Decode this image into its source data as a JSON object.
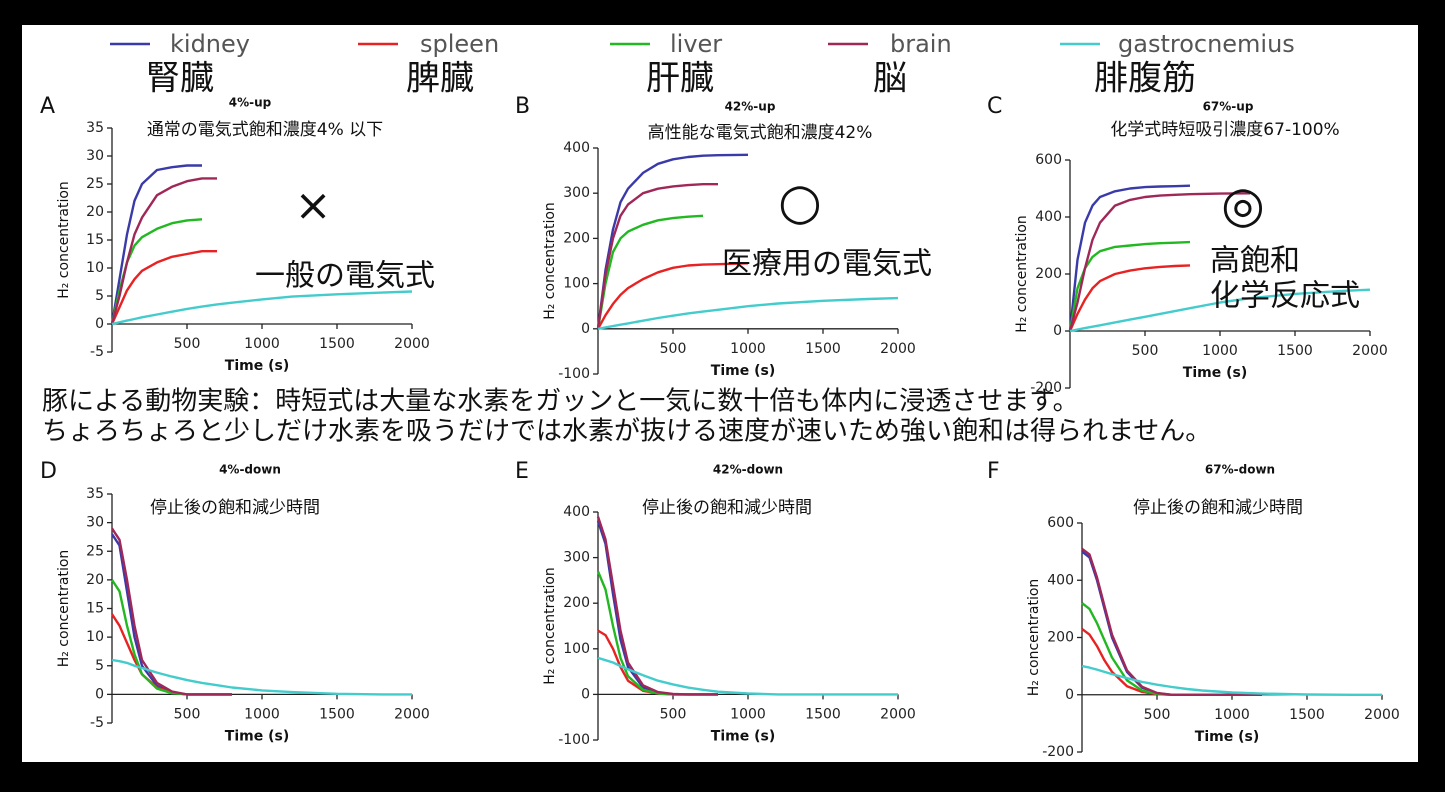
{
  "legend_ja": [
    "腎臓",
    "脾臓",
    "肝臓",
    "脳",
    "腓腹筋"
  ],
  "caption": [
    "豚による動物実験：時短式は大量な水素をガッンと一気に数十倍も体内に浸透させます。",
    "ちょろちょろと少しだけ水素を吸うだけでは水素が抜ける速度が速いため強い飽和は得られません。"
  ],
  "chart_data": [
    {
      "type": "line",
      "panel": "A",
      "title": "4%-up",
      "xlabel": "Time (s)",
      "ylabel": "H₂ concentration",
      "annotations": [
        "通常の電気式飽和濃度4% 以下",
        "×",
        "一般の電気式"
      ],
      "xlim": [
        0,
        2000
      ],
      "xticks": [
        500,
        1000,
        1500,
        2000
      ],
      "ylim": [
        -5,
        35
      ],
      "yticks": [
        -5,
        0,
        5,
        10,
        15,
        20,
        25,
        30,
        35
      ],
      "x": [
        0,
        50,
        100,
        150,
        200,
        300,
        400,
        500,
        600,
        700,
        800,
        1000,
        1200,
        1500,
        1800,
        2000
      ],
      "series": [
        {
          "name": "kidney",
          "color": "#3a3aa8",
          "values": [
            0,
            8,
            16,
            22,
            25,
            27.5,
            28,
            28.3,
            28.3,
            null,
            null,
            null,
            null,
            null,
            null,
            null
          ]
        },
        {
          "name": "spleen",
          "color": "#e82222",
          "values": [
            0,
            3,
            6,
            8,
            9.5,
            11,
            12,
            12.5,
            13,
            13,
            null,
            null,
            null,
            null,
            null,
            null
          ]
        },
        {
          "name": "liver",
          "color": "#22b822",
          "values": [
            0,
            6,
            11,
            14,
            15.5,
            17,
            18,
            18.5,
            18.7,
            null,
            null,
            null,
            null,
            null,
            null,
            null
          ]
        },
        {
          "name": "brain",
          "color": "#a02858",
          "values": [
            0,
            5,
            11,
            16,
            19,
            23,
            24.5,
            25.5,
            26,
            26,
            null,
            null,
            null,
            null,
            null,
            null
          ]
        },
        {
          "name": "gastrocnemius",
          "color": "#44cccc",
          "values": [
            0,
            0.3,
            0.6,
            0.9,
            1.2,
            1.7,
            2.2,
            2.7,
            3.1,
            3.5,
            3.8,
            4.4,
            4.9,
            5.3,
            5.6,
            5.8
          ]
        }
      ]
    },
    {
      "type": "line",
      "panel": "B",
      "title": "42%-up",
      "xlabel": "Time (s)",
      "ylabel": "H₂ concentration",
      "annotations": [
        "高性能な電気式飽和濃度42%",
        "○",
        "医療用の電気式"
      ],
      "xlim": [
        0,
        2000
      ],
      "xticks": [
        500,
        1000,
        1500,
        2000
      ],
      "ylim": [
        -100,
        400
      ],
      "yticks": [
        -100,
        0,
        100,
        200,
        300,
        400
      ],
      "x": [
        0,
        50,
        100,
        150,
        200,
        300,
        400,
        500,
        600,
        700,
        800,
        1000,
        1200,
        1500,
        1800,
        2000
      ],
      "series": [
        {
          "name": "kidney",
          "color": "#3a3aa8",
          "values": [
            0,
            130,
            220,
            280,
            310,
            345,
            365,
            375,
            380,
            383,
            384,
            385,
            null,
            null,
            null,
            null
          ]
        },
        {
          "name": "spleen",
          "color": "#e82222",
          "values": [
            0,
            30,
            55,
            75,
            90,
            110,
            125,
            135,
            140,
            142,
            143,
            145,
            null,
            null,
            null,
            null
          ]
        },
        {
          "name": "liver",
          "color": "#22b822",
          "values": [
            0,
            100,
            170,
            200,
            215,
            230,
            240,
            245,
            248,
            250,
            null,
            null,
            null,
            null,
            null,
            null
          ]
        },
        {
          "name": "brain",
          "color": "#a02858",
          "values": [
            0,
            120,
            200,
            250,
            275,
            300,
            310,
            315,
            318,
            320,
            320,
            null,
            null,
            null,
            null,
            null
          ]
        },
        {
          "name": "gastrocnemius",
          "color": "#44cccc",
          "values": [
            0,
            3,
            6,
            9,
            12,
            18,
            24,
            29,
            34,
            38,
            42,
            50,
            56,
            62,
            66,
            68
          ]
        }
      ]
    },
    {
      "type": "line",
      "panel": "C",
      "title": "67%-up",
      "xlabel": "Time (s)",
      "ylabel": "H₂ concentration",
      "annotations": [
        "化学式時短吸引濃度67-100%",
        "◎",
        "高飽和",
        "化学反応式"
      ],
      "xlim": [
        0,
        2000
      ],
      "xticks": [
        500,
        1000,
        1500,
        2000
      ],
      "ylim": [
        -200,
        600
      ],
      "yticks": [
        -200,
        0,
        200,
        400,
        600
      ],
      "x": [
        0,
        50,
        100,
        150,
        200,
        300,
        400,
        500,
        600,
        700,
        800,
        1000,
        1200,
        1500,
        1800,
        2000
      ],
      "series": [
        {
          "name": "kidney",
          "color": "#3a3aa8",
          "values": [
            0,
            250,
            380,
            440,
            470,
            490,
            500,
            505,
            507,
            508,
            510,
            null,
            null,
            null,
            null,
            null
          ]
        },
        {
          "name": "spleen",
          "color": "#e82222",
          "values": [
            0,
            60,
            110,
            150,
            175,
            200,
            212,
            220,
            225,
            228,
            230,
            null,
            null,
            null,
            null,
            null
          ]
        },
        {
          "name": "liver",
          "color": "#22b822",
          "values": [
            0,
            150,
            220,
            260,
            280,
            295,
            300,
            305,
            308,
            310,
            312,
            null,
            null,
            null,
            null,
            null
          ]
        },
        {
          "name": "brain",
          "color": "#a02858",
          "values": [
            0,
            100,
            220,
            320,
            380,
            440,
            460,
            470,
            475,
            478,
            480,
            482,
            483,
            null,
            null,
            null
          ]
        },
        {
          "name": "gastrocnemius",
          "color": "#44cccc",
          "values": [
            0,
            5,
            10,
            15,
            20,
            30,
            40,
            50,
            60,
            70,
            80,
            100,
            115,
            130,
            140,
            145
          ]
        }
      ]
    },
    {
      "type": "line",
      "panel": "D",
      "title": "4%-down",
      "xlabel": "Time (s)",
      "ylabel": "H₂ concentration",
      "annotations": [
        "停止後の飽和減少時間"
      ],
      "xlim": [
        0,
        2000
      ],
      "xticks": [
        500,
        1000,
        1500,
        2000
      ],
      "ylim": [
        -5,
        35
      ],
      "yticks": [
        -5,
        0,
        5,
        10,
        15,
        20,
        25,
        30,
        35
      ],
      "x": [
        0,
        50,
        100,
        150,
        200,
        300,
        400,
        500,
        600,
        700,
        800,
        1000,
        1200,
        1500,
        1800,
        2000
      ],
      "series": [
        {
          "name": "kidney",
          "color": "#3a3aa8",
          "values": [
            28,
            26,
            18,
            10,
            5,
            1.5,
            0.3,
            0,
            0,
            0,
            0,
            null,
            null,
            null,
            null,
            null
          ]
        },
        {
          "name": "spleen",
          "color": "#e82222",
          "values": [
            14,
            12,
            9,
            6,
            3.5,
            1.2,
            0.3,
            0,
            0,
            0,
            0,
            null,
            null,
            null,
            null,
            null
          ]
        },
        {
          "name": "liver",
          "color": "#22b822",
          "values": [
            20,
            18,
            12,
            7,
            3.5,
            1,
            0.2,
            0,
            0,
            0,
            0,
            null,
            null,
            null,
            null,
            null
          ]
        },
        {
          "name": "brain",
          "color": "#a02858",
          "values": [
            29,
            27,
            20,
            12,
            6,
            2,
            0.5,
            0,
            0,
            0,
            0,
            null,
            null,
            null,
            null,
            null
          ]
        },
        {
          "name": "gastrocnemius",
          "color": "#44cccc",
          "values": [
            6,
            5.8,
            5.5,
            5,
            4.6,
            3.8,
            3.1,
            2.5,
            2,
            1.6,
            1.2,
            0.7,
            0.4,
            0.1,
            0,
            0
          ]
        }
      ]
    },
    {
      "type": "line",
      "panel": "E",
      "title": "42%-down",
      "xlabel": "Time (s)",
      "ylabel": "H₂ concentration",
      "annotations": [
        "停止後の飽和減少時間"
      ],
      "xlim": [
        0,
        2000
      ],
      "xticks": [
        500,
        1000,
        1500,
        2000
      ],
      "ylim": [
        -100,
        400
      ],
      "yticks": [
        -100,
        0,
        100,
        200,
        300,
        400
      ],
      "x": [
        0,
        50,
        100,
        150,
        200,
        300,
        400,
        500,
        600,
        700,
        800,
        1000,
        1200,
        1500,
        1800,
        2000
      ],
      "series": [
        {
          "name": "kidney",
          "color": "#3a3aa8",
          "values": [
            380,
            330,
            220,
            120,
            60,
            15,
            3,
            0,
            0,
            0,
            0,
            null,
            null,
            null,
            null,
            null
          ]
        },
        {
          "name": "spleen",
          "color": "#e82222",
          "values": [
            140,
            130,
            100,
            60,
            30,
            8,
            2,
            0,
            0,
            0,
            0,
            null,
            null,
            null,
            null,
            null
          ]
        },
        {
          "name": "liver",
          "color": "#22b822",
          "values": [
            270,
            230,
            150,
            80,
            40,
            10,
            2,
            0,
            0,
            0,
            0,
            null,
            null,
            null,
            null,
            null
          ]
        },
        {
          "name": "brain",
          "color": "#a02858",
          "values": [
            390,
            340,
            240,
            140,
            70,
            20,
            5,
            1,
            0,
            0,
            0,
            null,
            null,
            null,
            null,
            null
          ]
        },
        {
          "name": "gastrocnemius",
          "color": "#44cccc",
          "values": [
            80,
            75,
            70,
            62,
            55,
            42,
            30,
            22,
            15,
            10,
            6,
            2,
            0,
            0,
            0,
            0
          ]
        }
      ]
    },
    {
      "type": "line",
      "panel": "F",
      "title": "67%-down",
      "xlabel": "Time (s)",
      "ylabel": "H₂ concentration",
      "annotations": [
        "停止後の飽和減少時間"
      ],
      "xlim": [
        0,
        2000
      ],
      "xticks": [
        500,
        1000,
        1500,
        2000
      ],
      "ylim": [
        -200,
        600
      ],
      "yticks": [
        -200,
        0,
        200,
        400,
        600
      ],
      "x": [
        0,
        50,
        100,
        150,
        200,
        300,
        400,
        500,
        600,
        700,
        800,
        1000,
        1200,
        1500,
        1800,
        2000
      ],
      "series": [
        {
          "name": "kidney",
          "color": "#3a3aa8",
          "values": [
            500,
            480,
            400,
            300,
            200,
            80,
            25,
            5,
            0,
            0,
            0,
            0,
            0,
            null,
            null,
            null
          ]
        },
        {
          "name": "spleen",
          "color": "#e82222",
          "values": [
            230,
            210,
            170,
            120,
            80,
            30,
            10,
            2,
            0,
            0,
            0,
            0,
            0,
            null,
            null,
            null
          ]
        },
        {
          "name": "liver",
          "color": "#22b822",
          "values": [
            320,
            300,
            250,
            190,
            130,
            50,
            15,
            3,
            0,
            0,
            0,
            0,
            0,
            null,
            null,
            null
          ]
        },
        {
          "name": "brain",
          "color": "#a02858",
          "values": [
            510,
            490,
            410,
            310,
            210,
            85,
            28,
            6,
            0,
            0,
            0,
            0,
            0,
            null,
            null,
            null
          ]
        },
        {
          "name": "gastrocnemius",
          "color": "#44cccc",
          "values": [
            100,
            95,
            88,
            80,
            72,
            58,
            45,
            35,
            27,
            20,
            15,
            8,
            4,
            1,
            0,
            0
          ]
        }
      ]
    }
  ]
}
